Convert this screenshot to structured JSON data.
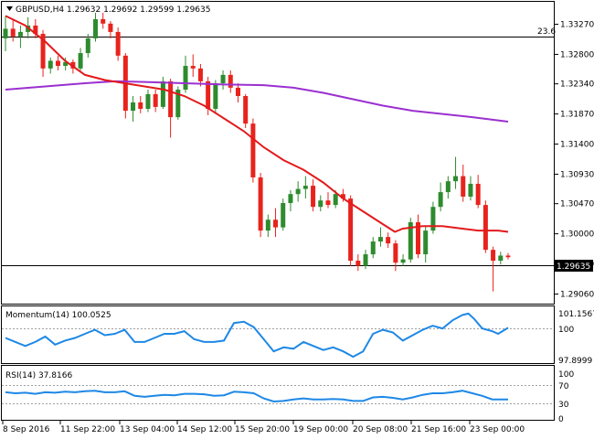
{
  "header": {
    "symbol_line": "GBPUSD,H4  1.29632 1.29692 1.29599 1.29635",
    "fib_label": "23.6"
  },
  "colors": {
    "bull": "#2e8b2e",
    "bear": "#e8231c",
    "ma_fast": "#e31a1c",
    "ma_slow": "#9b30d0",
    "indicator": "#1e88e5",
    "grid": "#a0a0a0"
  },
  "price_panel": {
    "current_price": "1.29635",
    "ticks": [
      "1.33270",
      "1.32800",
      "1.32340",
      "1.31870",
      "1.31400",
      "1.30930",
      "1.30470",
      "1.30000",
      "1.29530",
      "1.29060"
    ]
  },
  "momentum_panel": {
    "label": "Momentum(14) 100.0525",
    "ticks": [
      "101.1567",
      "100",
      "97.8999"
    ]
  },
  "rsi_panel": {
    "label": "RSI(14) 37.8166",
    "ticks": [
      "100",
      "70",
      "30",
      "0"
    ]
  },
  "time_axis": {
    "labels": [
      "8 Sep 2016",
      "11 Sep 22:00",
      "13 Sep 04:00",
      "14 Sep 12:00",
      "15 Sep 20:00",
      "19 Sep 00:00",
      "20 Sep 08:00",
      "21 Sep 16:00",
      "23 Sep 00:00"
    ]
  },
  "chart_data": {
    "type": "candlestick",
    "price_range": [
      1.2891,
      1.3362
    ],
    "horizontal_lines": [
      1.3327,
      1.29635
    ],
    "candles": [
      [
        1.3305,
        1.334,
        1.3285,
        1.332
      ],
      [
        1.332,
        1.3335,
        1.33,
        1.3308
      ],
      [
        1.3308,
        1.3325,
        1.329,
        1.3315
      ],
      [
        1.3315,
        1.3338,
        1.3305,
        1.3325
      ],
      [
        1.3325,
        1.3335,
        1.3305,
        1.3312
      ],
      [
        1.3312,
        1.3318,
        1.3245,
        1.3258
      ],
      [
        1.3258,
        1.3275,
        1.325,
        1.327
      ],
      [
        1.327,
        1.3278,
        1.3255,
        1.3262
      ],
      [
        1.3262,
        1.3275,
        1.3255,
        1.3268
      ],
      [
        1.3268,
        1.3272,
        1.325,
        1.3258
      ],
      [
        1.3258,
        1.329,
        1.3255,
        1.3282
      ],
      [
        1.3282,
        1.3312,
        1.3275,
        1.3305
      ],
      [
        1.3305,
        1.3345,
        1.33,
        1.3335
      ],
      [
        1.3335,
        1.3345,
        1.332,
        1.3328
      ],
      [
        1.3328,
        1.3332,
        1.3305,
        1.3315
      ],
      [
        1.3315,
        1.3322,
        1.327,
        1.3278
      ],
      [
        1.3278,
        1.3282,
        1.318,
        1.3192
      ],
      [
        1.3192,
        1.3215,
        1.3175,
        1.3205
      ],
      [
        1.3205,
        1.3215,
        1.3188,
        1.3195
      ],
      [
        1.3195,
        1.3225,
        1.319,
        1.3218
      ],
      [
        1.3218,
        1.3225,
        1.319,
        1.3198
      ],
      [
        1.3198,
        1.3245,
        1.3195,
        1.3238
      ],
      [
        1.3238,
        1.3242,
        1.315,
        1.3182
      ],
      [
        1.3182,
        1.323,
        1.3178,
        1.3225
      ],
      [
        1.3225,
        1.3278,
        1.322,
        1.3262
      ],
      [
        1.3262,
        1.328,
        1.3245,
        1.3258
      ],
      [
        1.3258,
        1.3265,
        1.323,
        1.3238
      ],
      [
        1.3238,
        1.3245,
        1.3185,
        1.3195
      ],
      [
        1.3195,
        1.324,
        1.319,
        1.3235
      ],
      [
        1.3235,
        1.3255,
        1.3225,
        1.3248
      ],
      [
        1.3248,
        1.3255,
        1.322,
        1.3228
      ],
      [
        1.3228,
        1.3235,
        1.3205,
        1.3215
      ],
      [
        1.3215,
        1.3218,
        1.3165,
        1.3172
      ],
      [
        1.3172,
        1.318,
        1.308,
        1.3088
      ],
      [
        1.3088,
        1.3095,
        1.2995,
        1.3005
      ],
      [
        1.3005,
        1.303,
        1.2995,
        1.3022
      ],
      [
        1.3022,
        1.304,
        1.2995,
        1.301
      ],
      [
        1.301,
        1.3055,
        1.3005,
        1.3048
      ],
      [
        1.3048,
        1.3068,
        1.3035,
        1.3062
      ],
      [
        1.3062,
        1.3082,
        1.305,
        1.307
      ],
      [
        1.307,
        1.309,
        1.3055,
        1.3075
      ],
      [
        1.3075,
        1.3085,
        1.3035,
        1.3042
      ],
      [
        1.3042,
        1.306,
        1.3035,
        1.3052
      ],
      [
        1.3052,
        1.3065,
        1.304,
        1.3045
      ],
      [
        1.3045,
        1.3068,
        1.304,
        1.3062
      ],
      [
        1.3062,
        1.307,
        1.305,
        1.3055
      ],
      [
        1.3055,
        1.306,
        1.295,
        1.2958
      ],
      [
        1.2958,
        1.2968,
        1.2942,
        1.295
      ],
      [
        1.295,
        1.2975,
        1.2945,
        1.2968
      ],
      [
        1.2968,
        1.2995,
        1.2962,
        1.2988
      ],
      [
        1.2988,
        1.301,
        1.298,
        1.2995
      ],
      [
        1.2995,
        1.3002,
        1.2978,
        1.2985
      ],
      [
        1.2985,
        1.299,
        1.2942,
        1.2955
      ],
      [
        1.2955,
        1.2968,
        1.295,
        1.296
      ],
      [
        1.296,
        1.3025,
        1.2955,
        1.3018
      ],
      [
        1.3018,
        1.303,
        1.2962,
        1.2968
      ],
      [
        1.2968,
        1.3012,
        1.2955,
        1.3005
      ],
      [
        1.3005,
        1.305,
        1.3,
        1.3042
      ],
      [
        1.3042,
        1.308,
        1.3035,
        1.3065
      ],
      [
        1.3065,
        1.309,
        1.3055,
        1.3082
      ],
      [
        1.3082,
        1.312,
        1.307,
        1.309
      ],
      [
        1.309,
        1.3108,
        1.305,
        1.3058
      ],
      [
        1.3058,
        1.309,
        1.3052,
        1.3078
      ],
      [
        1.3078,
        1.3092,
        1.304,
        1.3045
      ],
      [
        1.3045,
        1.3052,
        1.297,
        1.2975
      ],
      [
        1.2975,
        1.298,
        1.291,
        1.2958
      ],
      [
        1.2958,
        1.2972,
        1.2952,
        1.2966
      ],
      [
        1.2966,
        1.297,
        1.296,
        1.29635
      ]
    ],
    "ma_fast": [
      [
        0,
        1.334
      ],
      [
        10,
        1.3325
      ],
      [
        20,
        1.33
      ],
      [
        30,
        1.327
      ],
      [
        40,
        1.3248
      ],
      [
        50,
        1.324
      ],
      [
        60,
        1.3235
      ],
      [
        70,
        1.323
      ],
      [
        80,
        1.3225
      ],
      [
        90,
        1.3215
      ],
      [
        100,
        1.32
      ],
      [
        110,
        1.318
      ],
      [
        120,
        1.316
      ],
      [
        130,
        1.3135
      ],
      [
        140,
        1.3115
      ],
      [
        150,
        1.31
      ],
      [
        160,
        1.308
      ],
      [
        170,
        1.3055
      ],
      [
        180,
        1.3035
      ],
      [
        190,
        1.3015
      ],
      [
        196,
        1.3003
      ],
      [
        200,
        1.3008
      ],
      [
        210,
        1.3012
      ],
      [
        220,
        1.3012
      ],
      [
        230,
        1.3008
      ],
      [
        238,
        1.3005
      ],
      [
        248,
        1.3005
      ],
      [
        253,
        1.3003
      ]
    ],
    "ma_slow": [
      [
        0,
        1.3225
      ],
      [
        20,
        1.323
      ],
      [
        40,
        1.3235
      ],
      [
        55,
        1.3238
      ],
      [
        70,
        1.3237
      ],
      [
        90,
        1.3235
      ],
      [
        110,
        1.3233
      ],
      [
        130,
        1.3232
      ],
      [
        145,
        1.3228
      ],
      [
        160,
        1.322
      ],
      [
        175,
        1.321
      ],
      [
        190,
        1.32
      ],
      [
        205,
        1.3192
      ],
      [
        220,
        1.3187
      ],
      [
        235,
        1.3182
      ],
      [
        253,
        1.3175
      ]
    ],
    "momentum_range": [
      97.5,
      101.5
    ],
    "momentum": [
      [
        0,
        99.3
      ],
      [
        5,
        99.0
      ],
      [
        10,
        98.7
      ],
      [
        15,
        99.0
      ],
      [
        20,
        99.4
      ],
      [
        25,
        98.8
      ],
      [
        30,
        99.1
      ],
      [
        35,
        99.3
      ],
      [
        40,
        99.6
      ],
      [
        45,
        99.9
      ],
      [
        50,
        99.5
      ],
      [
        55,
        99.6
      ],
      [
        60,
        99.9
      ],
      [
        65,
        99.0
      ],
      [
        70,
        99.0
      ],
      [
        75,
        99.3
      ],
      [
        80,
        99.6
      ],
      [
        85,
        99.6
      ],
      [
        90,
        99.8
      ],
      [
        95,
        99.2
      ],
      [
        100,
        99.0
      ],
      [
        105,
        99.0
      ],
      [
        110,
        99.1
      ],
      [
        115,
        100.4
      ],
      [
        120,
        100.5
      ],
      [
        125,
        100.1
      ],
      [
        130,
        99.2
      ],
      [
        135,
        98.3
      ],
      [
        140,
        98.6
      ],
      [
        145,
        98.5
      ],
      [
        150,
        99.0
      ],
      [
        155,
        98.7
      ],
      [
        160,
        98.4
      ],
      [
        165,
        98.6
      ],
      [
        170,
        98.3
      ],
      [
        175,
        97.9
      ],
      [
        180,
        98.3
      ],
      [
        185,
        99.6
      ],
      [
        190,
        99.9
      ],
      [
        195,
        99.7
      ],
      [
        200,
        99.1
      ],
      [
        205,
        99.5
      ],
      [
        210,
        99.9
      ],
      [
        215,
        100.2
      ],
      [
        220,
        100.0
      ],
      [
        225,
        100.6
      ],
      [
        230,
        101.0
      ],
      [
        233,
        101.1
      ],
      [
        236,
        100.7
      ],
      [
        240,
        100.0
      ],
      [
        245,
        99.8
      ],
      [
        248,
        99.6
      ],
      [
        253,
        100.05
      ]
    ],
    "rsi_range": [
      0,
      100
    ],
    "rsi": [
      [
        0,
        52
      ],
      [
        5,
        50
      ],
      [
        10,
        51
      ],
      [
        15,
        49
      ],
      [
        20,
        52
      ],
      [
        25,
        51
      ],
      [
        30,
        53
      ],
      [
        35,
        52
      ],
      [
        40,
        54
      ],
      [
        45,
        55
      ],
      [
        50,
        52
      ],
      [
        55,
        52
      ],
      [
        60,
        54
      ],
      [
        65,
        45
      ],
      [
        70,
        43
      ],
      [
        75,
        45
      ],
      [
        80,
        47
      ],
      [
        85,
        46
      ],
      [
        90,
        49
      ],
      [
        95,
        49
      ],
      [
        100,
        48
      ],
      [
        105,
        45
      ],
      [
        110,
        46
      ],
      [
        115,
        53
      ],
      [
        120,
        52
      ],
      [
        125,
        50
      ],
      [
        130,
        40
      ],
      [
        135,
        34
      ],
      [
        140,
        35
      ],
      [
        145,
        38
      ],
      [
        150,
        40
      ],
      [
        155,
        38
      ],
      [
        160,
        38
      ],
      [
        165,
        39
      ],
      [
        170,
        38
      ],
      [
        175,
        35
      ],
      [
        180,
        35
      ],
      [
        185,
        42
      ],
      [
        190,
        43
      ],
      [
        195,
        41
      ],
      [
        200,
        38
      ],
      [
        205,
        42
      ],
      [
        210,
        47
      ],
      [
        215,
        50
      ],
      [
        220,
        50
      ],
      [
        225,
        52
      ],
      [
        230,
        55
      ],
      [
        235,
        50
      ],
      [
        240,
        45
      ],
      [
        245,
        38
      ],
      [
        253,
        37.8
      ]
    ]
  }
}
